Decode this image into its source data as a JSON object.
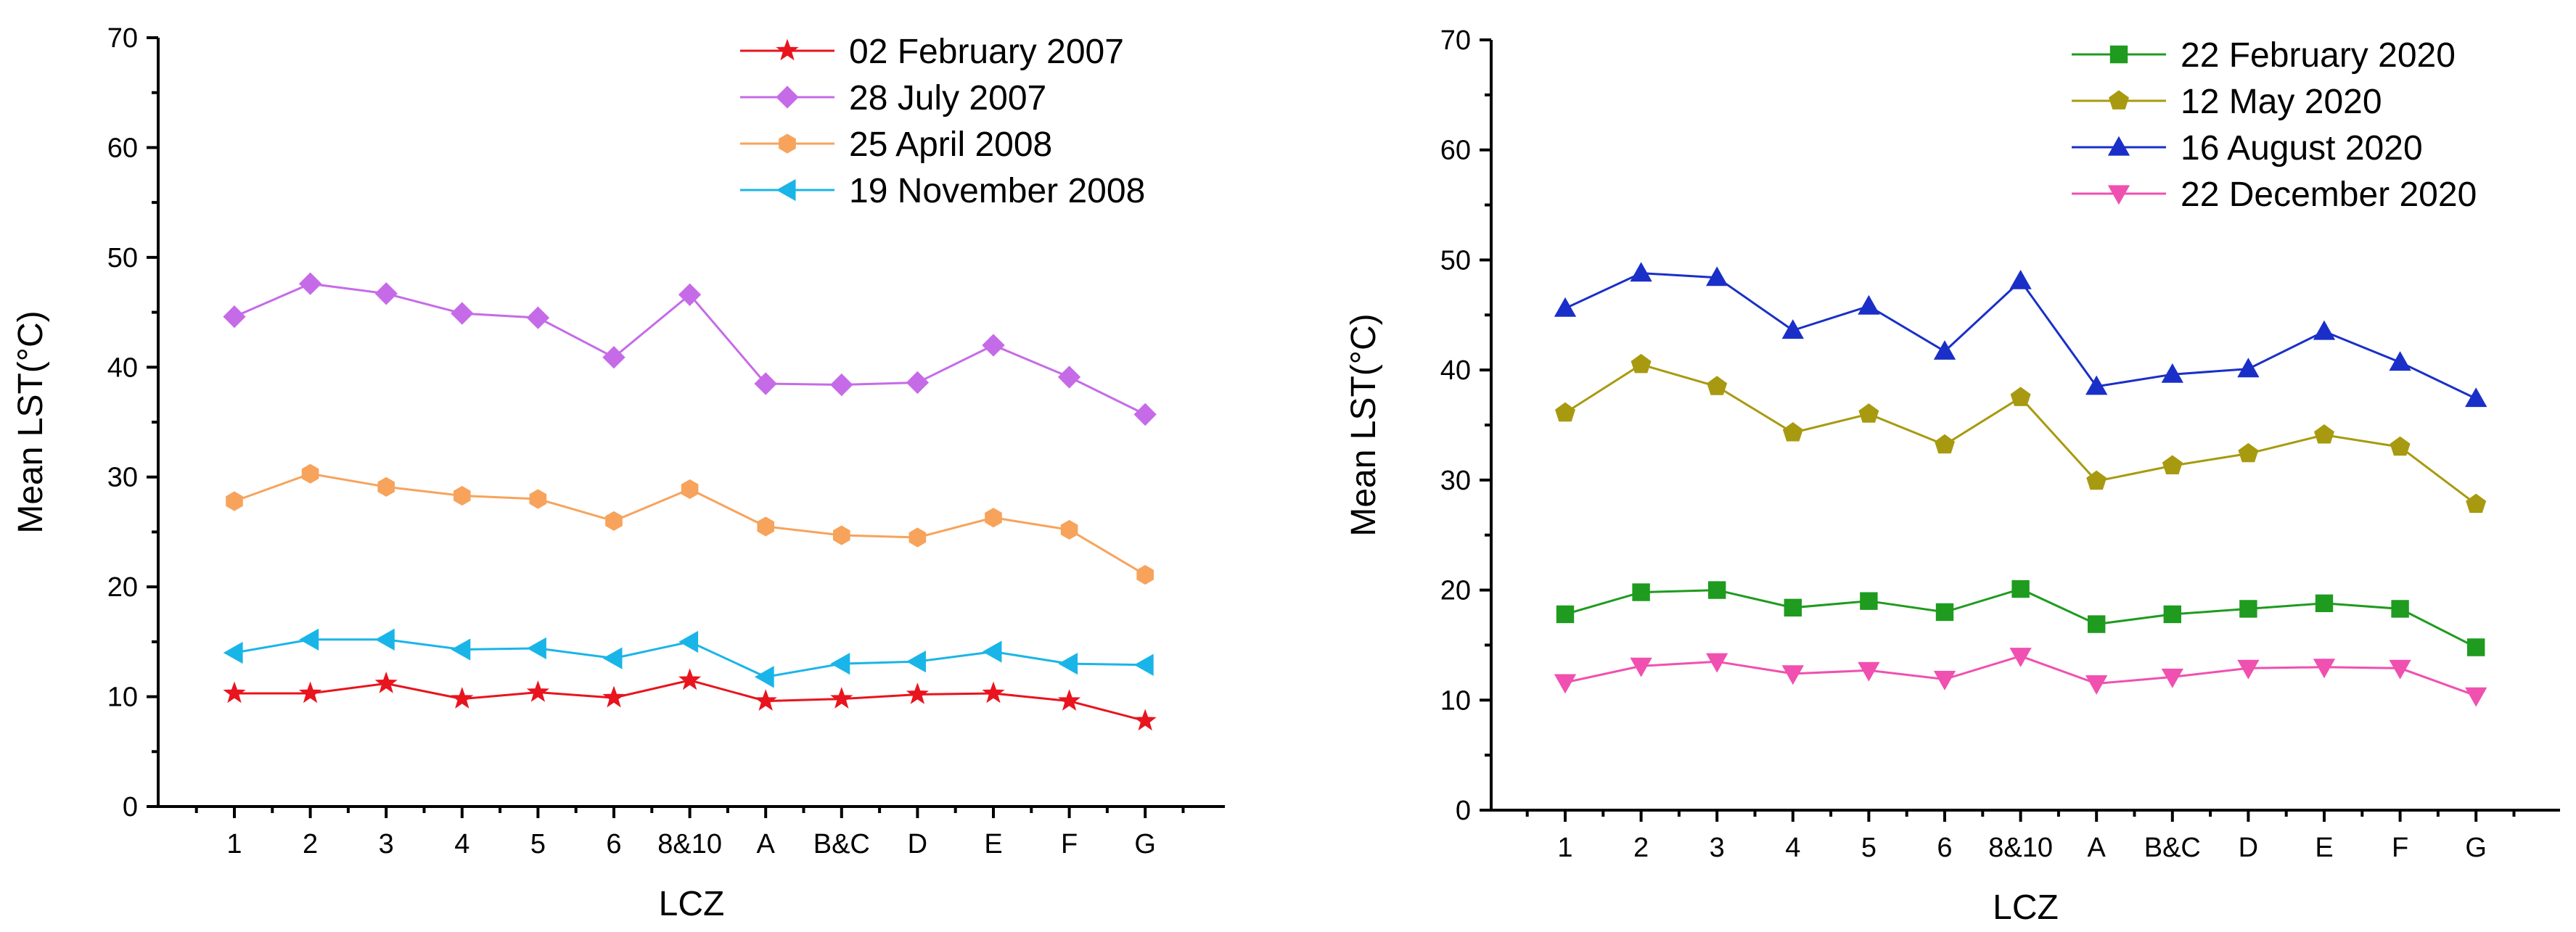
{
  "chart_data": [
    {
      "type": "line",
      "title": "",
      "xlabel": "LCZ",
      "ylabel": "Mean LST(°C)",
      "ylim": [
        0,
        70
      ],
      "yticks": [
        0,
        10,
        20,
        30,
        40,
        50,
        60,
        70
      ],
      "categories": [
        "1",
        "2",
        "3",
        "4",
        "5",
        "6",
        "8&10",
        "A",
        "B&C",
        "D",
        "E",
        "F",
        "G"
      ],
      "legend_position": "top-right",
      "series": [
        {
          "name": "02 February 2007",
          "color": "#e8141e",
          "marker": "star",
          "values": [
            10.3,
            10.3,
            11.2,
            9.8,
            10.4,
            9.9,
            11.5,
            9.6,
            9.8,
            10.2,
            10.3,
            9.6,
            7.8
          ]
        },
        {
          "name": "28 July 2007",
          "color": "#c66be8",
          "marker": "diamond",
          "values": [
            44.6,
            47.6,
            46.7,
            44.9,
            44.5,
            40.9,
            46.6,
            38.5,
            38.4,
            38.6,
            42.0,
            39.1,
            35.7
          ]
        },
        {
          "name": "25 April 2008",
          "color": "#f7a35c",
          "marker": "hexagon",
          "values": [
            27.8,
            30.3,
            29.1,
            28.3,
            28.0,
            26.0,
            28.9,
            25.5,
            24.7,
            24.5,
            26.3,
            25.2,
            21.1
          ]
        },
        {
          "name": "19 November 2008",
          "color": "#1ab5e8",
          "marker": "triangle-left",
          "values": [
            14.0,
            15.2,
            15.2,
            14.3,
            14.4,
            13.5,
            15.0,
            11.8,
            13.0,
            13.2,
            14.1,
            13.0,
            12.9
          ]
        }
      ]
    },
    {
      "type": "line",
      "title": "",
      "xlabel": "LCZ",
      "ylabel": "Mean LST(°C)",
      "ylim": [
        0,
        70
      ],
      "yticks": [
        0,
        10,
        20,
        30,
        40,
        50,
        60,
        70
      ],
      "categories": [
        "1",
        "2",
        "3",
        "4",
        "5",
        "6",
        "8&10",
        "A",
        "B&C",
        "D",
        "E",
        "F",
        "G"
      ],
      "legend_position": "top-right",
      "series": [
        {
          "name": "22 February 2020",
          "color": "#1f9b1f",
          "marker": "square",
          "values": [
            17.8,
            19.8,
            20.0,
            18.4,
            19.0,
            18.0,
            20.1,
            16.9,
            17.8,
            18.3,
            18.8,
            18.3,
            14.8
          ]
        },
        {
          "name": "12 May 2020",
          "color": "#a89a10",
          "marker": "pentagon",
          "values": [
            36.1,
            40.5,
            38.5,
            34.3,
            36.0,
            33.2,
            37.5,
            29.9,
            31.3,
            32.4,
            34.1,
            33.0,
            27.8
          ]
        },
        {
          "name": "16 August 2020",
          "color": "#1a2fc8",
          "marker": "triangle-up",
          "values": [
            45.6,
            48.8,
            48.4,
            43.6,
            45.8,
            41.7,
            48.1,
            38.5,
            39.6,
            40.1,
            43.5,
            40.7,
            37.4
          ]
        },
        {
          "name": "22 December 2020",
          "color": "#f050b0",
          "marker": "triangle-down",
          "values": [
            11.6,
            13.1,
            13.5,
            12.4,
            12.7,
            11.9,
            14.0,
            11.5,
            12.1,
            12.9,
            13.0,
            12.9,
            10.4
          ]
        }
      ]
    }
  ]
}
